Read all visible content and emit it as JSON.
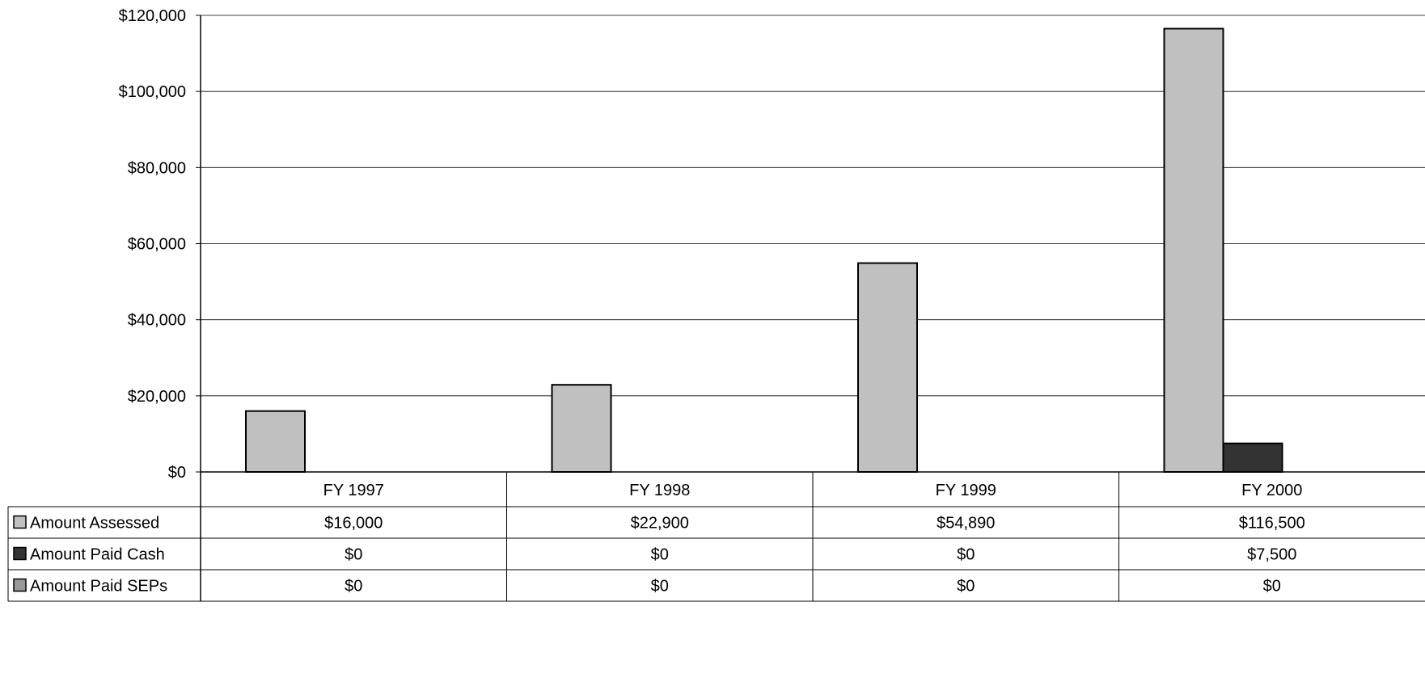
{
  "chart_data": {
    "type": "bar",
    "categories": [
      "FY 1997",
      "FY 1998",
      "FY 1999",
      "FY 2000"
    ],
    "series": [
      {
        "name": "Amount Assessed",
        "values": [
          16000,
          22900,
          54890,
          116500
        ],
        "color": "#c0c0c0"
      },
      {
        "name": "Amount Paid Cash",
        "values": [
          0,
          0,
          0,
          7500
        ],
        "color": "#333333"
      },
      {
        "name": "Amount Paid SEPs",
        "values": [
          0,
          0,
          0,
          0
        ],
        "color": "#999999"
      }
    ],
    "table_values": [
      [
        "$16,000",
        "$22,900",
        "$54,890",
        "$116,500"
      ],
      [
        "$0",
        "$0",
        "$0",
        "$7,500"
      ],
      [
        "$0",
        "$0",
        "$0",
        "$0"
      ]
    ],
    "ylim": [
      0,
      120000
    ],
    "yticks": [
      0,
      20000,
      40000,
      60000,
      80000,
      100000,
      120000
    ],
    "ytick_labels": [
      "$0",
      "$20,000",
      "$40,000",
      "$60,000",
      "$80,000",
      "$100,000",
      "$120,000"
    ],
    "grid": true,
    "legend": "data-table"
  }
}
